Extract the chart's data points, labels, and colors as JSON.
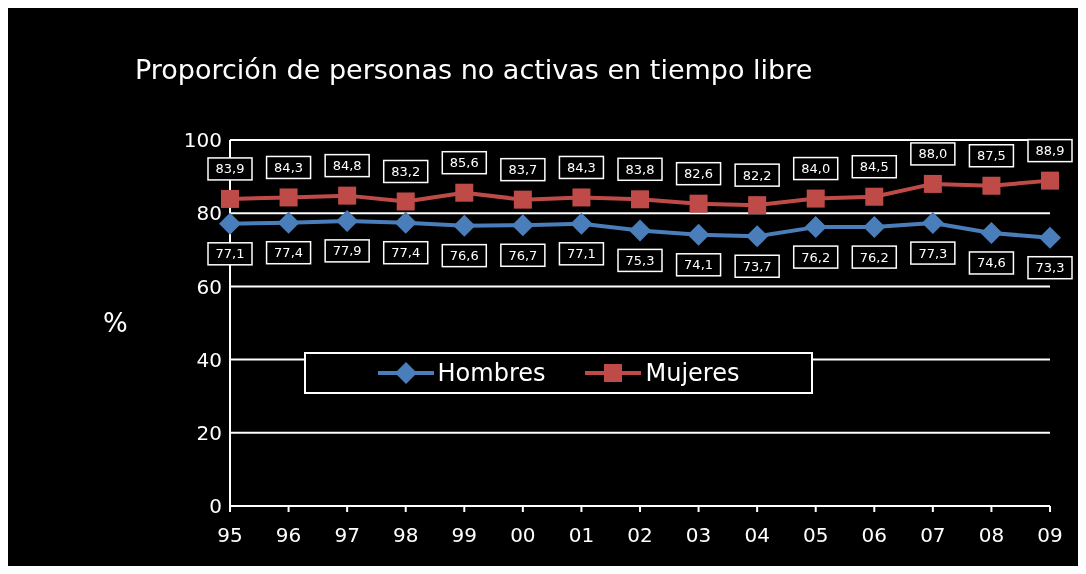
{
  "chart_data": {
    "type": "line",
    "title": "Proporción de personas no activas en tiempo libre",
    "ylabel": "%",
    "categories": [
      "95",
      "96",
      "97",
      "98",
      "99",
      "00",
      "01",
      "02",
      "03",
      "04",
      "05",
      "06",
      "07",
      "08",
      "09"
    ],
    "series": [
      {
        "name": "Hombres",
        "color": "#4a7ebb",
        "marker": "diamond",
        "values": [
          77.1,
          77.4,
          77.9,
          77.4,
          76.6,
          76.7,
          77.1,
          75.3,
          74.1,
          73.7,
          76.2,
          76.2,
          77.3,
          74.6,
          73.3
        ],
        "value_labels": [
          "77,1",
          "77,4",
          "77,9",
          "77,4",
          "76,6",
          "76,7",
          "77,1",
          "75,3",
          "74,1",
          "73,7",
          "76,2",
          "76,2",
          "77,3",
          "74,6",
          "73,3"
        ]
      },
      {
        "name": "Mujeres",
        "color": "#be4b48",
        "marker": "square",
        "values": [
          83.9,
          84.3,
          84.8,
          83.2,
          85.6,
          83.7,
          84.3,
          83.8,
          82.6,
          82.2,
          84.0,
          84.5,
          88.0,
          87.5,
          88.9
        ],
        "value_labels": [
          "83,9",
          "84,3",
          "84,8",
          "83,2",
          "85,6",
          "83,7",
          "84,3",
          "83,8",
          "82,6",
          "82,2",
          "84,0",
          "84,5",
          "88,0",
          "87,5",
          "88,9"
        ]
      }
    ],
    "ylim": [
      0,
      100
    ],
    "yticks": [
      0,
      20,
      40,
      60,
      80,
      100
    ],
    "grid": "y",
    "legend": "left"
  }
}
